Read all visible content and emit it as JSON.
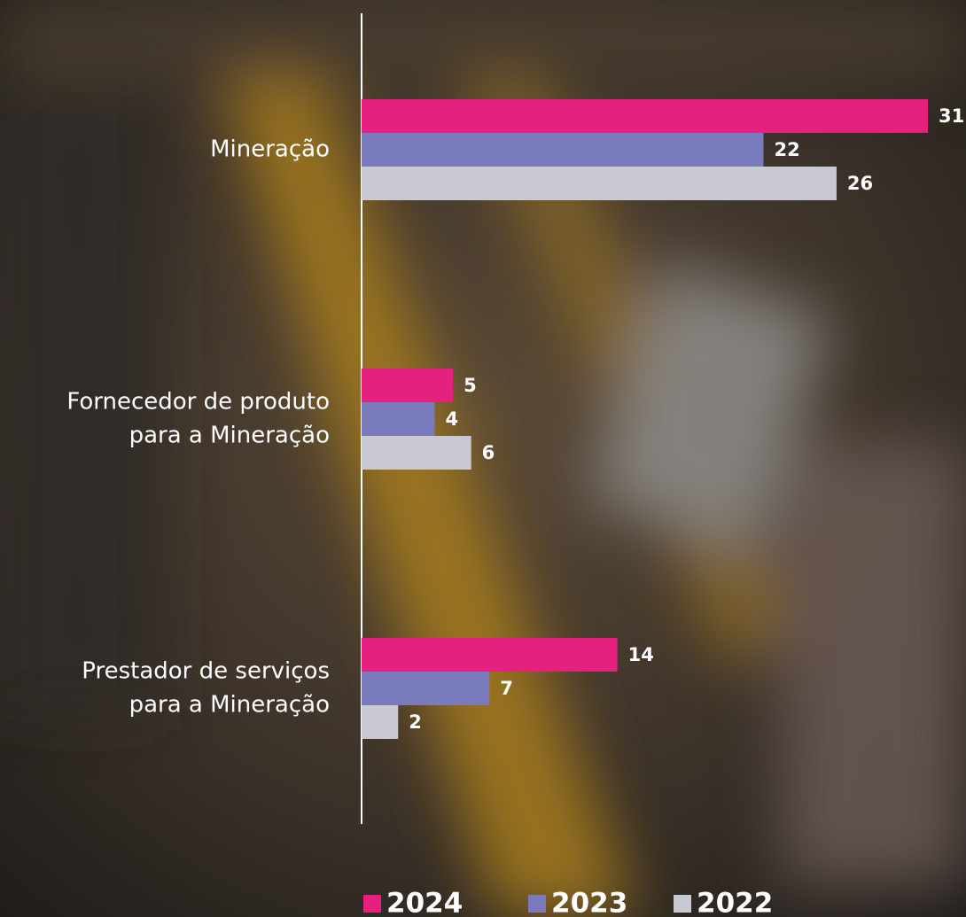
{
  "chart_data": {
    "type": "bar",
    "orientation": "horizontal",
    "categories": [
      [
        "Mineração"
      ],
      [
        "Fornecedor de produto",
        "para a Mineração"
      ],
      [
        "Prestador de serviços",
        "para a Mineração"
      ]
    ],
    "series": [
      {
        "name": "2024",
        "color": "#e6207f",
        "values": [
          31,
          5,
          14
        ]
      },
      {
        "name": "2023",
        "color": "#7a7bbd",
        "values": [
          22,
          4,
          7
        ]
      },
      {
        "name": "2022",
        "color": "#c9c9d3",
        "values": [
          26,
          6,
          2
        ]
      }
    ],
    "xlim": [
      0,
      31
    ],
    "legend": "bottom"
  }
}
